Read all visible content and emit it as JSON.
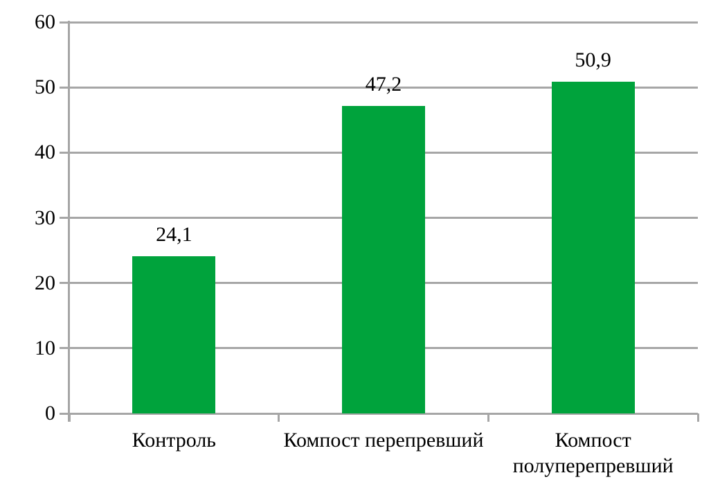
{
  "chart_data": {
    "type": "bar",
    "title": "",
    "xlabel": "",
    "ylabel": "",
    "categories": [
      "Контроль",
      "Компост перепревший",
      "Компост полуперепревший"
    ],
    "values": [
      24.1,
      47.2,
      50.9
    ],
    "value_labels": [
      "24,1",
      "47,2",
      "50,9"
    ],
    "ylim": [
      0,
      60
    ],
    "ytick_step": 10,
    "ytick_labels": [
      "0",
      "10",
      "20",
      "30",
      "40",
      "50",
      "60"
    ],
    "grid": true,
    "legend_position": "none",
    "bar_color": "#00A33C",
    "axis_color": "#A6A6A6",
    "text_color": "#000000",
    "background_color": "#FFFFFF"
  }
}
